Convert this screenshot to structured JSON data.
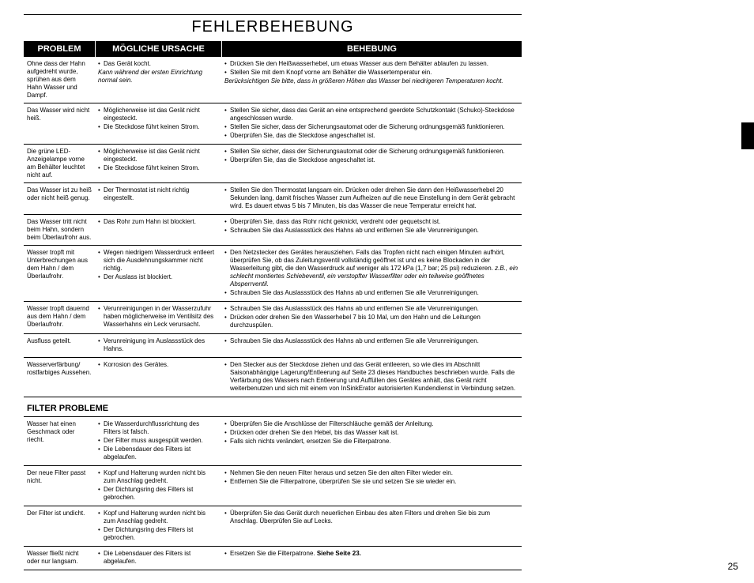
{
  "title": "FEHLERBEHEBUNG",
  "headers": {
    "c1": "PROBLEM",
    "c2": "MÖGLICHE URSACHE",
    "c3": "BEHEBUNG"
  },
  "rows": [
    {
      "problem": "Ohne dass der Hahn aufgedreht wurde, sprühen aus dem Hahn Wasser und Dampf.",
      "cause": "<ul><li>Das Gerät kocht.</li></ul><span class='ital'>Kann während der ersten Einrichtung normal sein.</span>",
      "fix": "<ul><li>Drücken Sie den Heißwasserhebel, um etwas Wasser aus dem Behälter ablaufen zu lassen.</li><li>Stellen Sie mit dem Knopf vorne am Behälter die Wassertemperatur ein.</li></ul><span class='ital'>Berücksichtigen Sie bitte, dass in größeren Höhen das Wasser bei niedrigeren Temperaturen kocht.</span>"
    },
    {
      "problem": "Das Wasser wird nicht heiß.",
      "cause": "<ul><li>Möglicherweise ist das Gerät nicht eingesteckt.</li><li>Die Steckdose führt keinen Strom.</li></ul>",
      "fix": "<ul><li>Stellen Sie sicher, dass das Gerät an eine entsprechend geerdete Schutzkontakt (Schuko)-Steckdose angeschlossen wurde.</li><li>Stellen Sie sicher, dass der Sicherungsautomat oder die Sicherung ordnungsgemäß funktionieren.</li><li>Überprüfen Sie, das die Steckdose angeschaltet ist.</li></ul>"
    },
    {
      "problem": "Die grüne LED-Anzeigelampe vorne am Behälter leuchtet nicht auf.",
      "cause": "<ul><li>Möglicherweise ist das Gerät nicht eingesteckt.</li><li>Die Steckdose führt keinen Strom.</li></ul>",
      "fix": "<ul><li>Stellen Sie sicher, dass der Sicherungsautomat oder die Sicherung ordnungsgemäß funktionieren.</li><li>Überprüfen Sie, das die Steckdose angeschaltet ist.</li></ul>"
    },
    {
      "problem": "Das Wasser ist zu heiß oder nicht heiß genug.",
      "cause": "<ul><li>Der Thermostat ist nicht richtig eingestellt.</li></ul>",
      "fix": "<ul><li>Stellen Sie den Thermostat langsam ein. Drücken oder drehen Sie dann den Heißwasserhebel 20 Sekunden lang, damit frisches Wasser zum Aufheizen auf die neue Einstellung in dem Gerät gebracht wird. Es dauert etwas 5 bis 7 Minuten, bis das Wasser die neue Temperatur erreicht hat.</li></ul>"
    },
    {
      "problem": "Das Wasser tritt nicht beim Hahn, sondern beim Überlaufrohr aus.",
      "cause": "<ul><li>Das Rohr zum Hahn ist blockiert.</li></ul>",
      "fix": "<ul><li>Überprüfen Sie, dass das Rohr nicht geknickt, verdreht oder gequetscht ist.</li><li>Schrauben Sie das Auslassstück des Hahns ab und entfernen Sie alle Verunreinigungen.</li></ul>"
    },
    {
      "problem": "Wasser tropft mit Unterbrechungen aus dem Hahn / dem Überlaufrohr.",
      "cause": "<ul><li>Wegen niedrigem Wasserdruck entleert sich die Ausdehnungskammer nicht richtig.</li><li>Der Auslass ist blockiert.</li></ul>",
      "fix": "<ul><li>Den Netzstecker des Gerätes herausziehen. Falls das Tropfen nicht nach einigen Minuten aufhört, überprüfen Sie, ob das Zuleitungsventil vollständig geöffnet ist und es keine Blockaden in der Wasserleitung gibt, die den Wasserdruck auf weniger als 172 kPa (1,7 bar; 25 psi) reduzieren. <span class='ital'>z.B., ein schlecht montiertes Schiebeventil, ein verstopfter Wasserfilter oder ein teilweise geöffnetes Absperrventil.</span></li><li>Schrauben Sie das Auslassstück des Hahns ab und entfernen Sie alle Verunreinigungen.</li></ul>"
    },
    {
      "problem": "Wasser tropft dauernd aus dem Hahn / dem Überlaufrohr.",
      "cause": "<ul><li>Verunreinigungen in der Wasserzufuhr haben möglicherweise im Ventilsitz des Wasserhahns ein Leck verursacht.</li></ul>",
      "fix": "<ul><li>Schrauben Sie das Auslassstück des Hahns ab und entfernen Sie alle Verunreinigungen.</li><li>Drücken oder drehen Sie den Wasserhebel 7 bis 10 Mal, um den Hahn und die Leitungen durchzuspülen.</li></ul>"
    },
    {
      "problem": "Ausfluss geteilt.",
      "cause": "<ul><li>Verunreinigung im Auslassstück des Hahns.</li></ul>",
      "fix": "<ul><li>Schrauben Sie das Auslassstück des Hahns ab und entfernen Sie alle Verunreinigungen.</li></ul>"
    },
    {
      "problem": "Wasserverfärbung/ rostfarbiges Aussehen.",
      "cause": "<ul><li>Korrosion des Gerätes.</li></ul>",
      "fix": "<ul><li>Den Stecker aus der Steckdose ziehen und das Gerät entleeren, so wie dies im Abschnitt Saisonabhängige Lagerung/Entleerung auf Seite 23 dieses Handbuches beschrieben wurde. Falls die Verfärbung des Wassers nach Entleerung und Auffüllen des Gerätes anhält, das Gerät nicht weiterbenutzen und sich mit einem von InSinkErator autorisierten Kundendienst in Verbindung setzen.</li></ul>"
    }
  ],
  "section2": "FILTER PROBLEME",
  "rows2": [
    {
      "problem": "Wasser hat einen Geschmack oder riecht.",
      "cause": "<ul><li>Die Wasserdurchflussrichtung des Filters ist falsch.</li><li>Der Filter muss ausgespült werden.</li><li>Die Lebensdauer des Filters ist abgelaufen.</li></ul>",
      "fix": "<ul><li>Überprüfen Sie die Anschlüsse der Filterschläuche gemäß der Anleitung.</li><li>Drücken oder drehen Sie den Hebel, bis das Wasser kalt ist.</li><li>Falls sich nichts verändert, ersetzen Sie die Filterpatrone.</li></ul>"
    },
    {
      "problem": "Der neue Filter passt nicht.",
      "cause": "<ul><li>Kopf und Halterung wurden nicht bis zum Anschlag gedreht.</li><li>Der Dichtungsring des Filters ist gebrochen.</li></ul>",
      "fix": "<ul><li>Nehmen Sie den neuen Filter heraus und setzen Sie den alten Filter wieder ein.</li><li>Entfernen Sie die Filterpatrone, überprüfen Sie sie und setzen Sie sie wieder ein.</li></ul>"
    },
    {
      "problem": "Der Filter ist undicht.",
      "cause": "<ul><li>Kopf und Halterung wurden nicht bis zum Anschlag gedreht.</li><li>Der Dichtungsring des Filters ist gebrochen.</li></ul>",
      "fix": "<ul><li>Überprüfen Sie das Gerät durch neuerlichen Einbau des alten Filters und drehen Sie bis zum Anschlag. Überprüfen Sie auf Lecks.</li></ul>"
    },
    {
      "problem": "Wasser fließt nicht oder nur langsam.",
      "cause": "<ul><li>Die Lebensdauer des Filters ist abgelaufen.</li></ul>",
      "fix": "<ul><li>Ersetzen Sie die Filterpatrone. <span class='bold'>Siehe Seite 23.</span></li></ul>"
    }
  ],
  "pageNumber": "25"
}
